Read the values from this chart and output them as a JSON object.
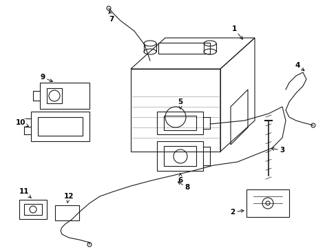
{
  "background_color": "#ffffff",
  "line_color": "#1a1a1a",
  "label_color": "#000000",
  "figsize": [
    4.89,
    3.6
  ],
  "dpi": 100,
  "labels": {
    "1": [
      340,
      42,
      355,
      60
    ],
    "2": [
      338,
      308,
      358,
      305
    ],
    "3": [
      410,
      218,
      390,
      215
    ],
    "4": [
      432,
      95,
      445,
      105
    ],
    "5": [
      262,
      148,
      262,
      162
    ],
    "6": [
      262,
      262,
      262,
      248
    ],
    "7": [
      162,
      28,
      158,
      12
    ],
    "8": [
      272,
      272,
      255,
      262
    ],
    "9": [
      62,
      112,
      80,
      120
    ],
    "10": [
      30,
      178,
      45,
      185
    ],
    "11": [
      35,
      278,
      48,
      290
    ],
    "12": [
      100,
      285,
      97,
      298
    ]
  }
}
